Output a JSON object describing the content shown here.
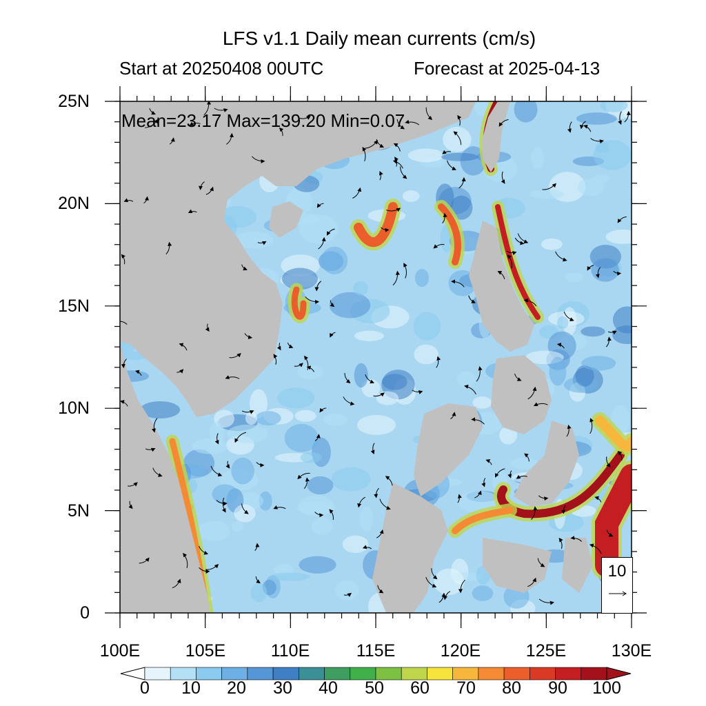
{
  "title": "LFS v1.1 Daily mean currents (cm/s)",
  "start_label": "Start at 20250408 00UTC",
  "forecast_label": "Forecast at 2025-04-13",
  "stats": "Mean=23.17  Max=139.20  Min=0.07",
  "lat_labels": [
    "25N",
    "20N",
    "15N",
    "10N",
    "5N",
    "0"
  ],
  "lon_labels": [
    "100E",
    "105E",
    "110E",
    "115E",
    "120E",
    "125E",
    "130E"
  ],
  "reference_vector": {
    "label": "10"
  },
  "colorbar": {
    "labels": [
      "0",
      "10",
      "20",
      "30",
      "40",
      "50",
      "60",
      "70",
      "80",
      "90",
      "100"
    ],
    "colors": [
      "#e6f5fc",
      "#b3e0f5",
      "#8acbef",
      "#6db0e6",
      "#5596d6",
      "#3f7fc4",
      "#3b8f97",
      "#3e9e60",
      "#3fb04a",
      "#7cc142",
      "#bfd64a",
      "#f6e43c",
      "#f7b73c",
      "#f48a33",
      "#ec5d2c",
      "#d93a26",
      "#c41e22",
      "#a3121b"
    ]
  },
  "colors": {
    "land": "#c0c0c0",
    "ocean_base": "#a9d7f1"
  }
}
